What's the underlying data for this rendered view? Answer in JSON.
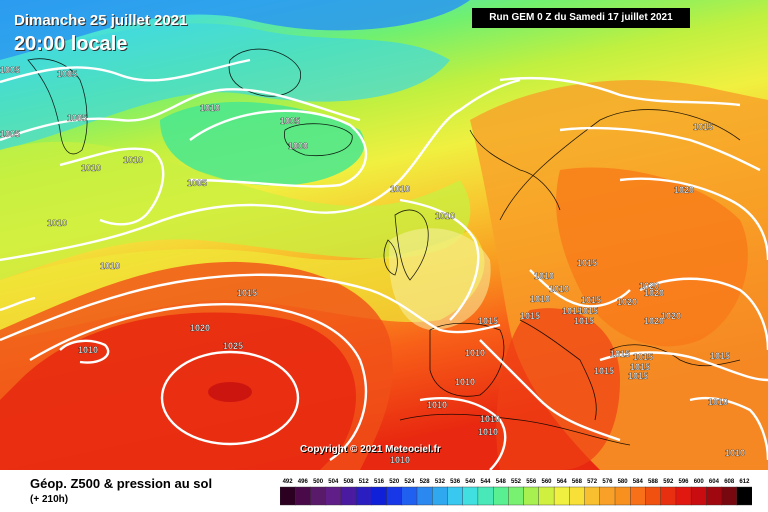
{
  "header": {
    "date": "Dimanche 25 juillet 2021",
    "time": "20:00 locale",
    "run": "Run GEM 0 Z du Samedi 17 juillet 2021"
  },
  "copyright": "Copyright © 2021 Meteociel.fr",
  "footer": {
    "title": "Géop. Z500 & pression au sol",
    "subtitle": "(+ 210h)"
  },
  "scale": {
    "labels": [
      "492",
      "496",
      "500",
      "504",
      "508",
      "512",
      "516",
      "520",
      "524",
      "528",
      "532",
      "536",
      "540",
      "544",
      "548",
      "552",
      "556",
      "560",
      "564",
      "568",
      "572",
      "576",
      "580",
      "584",
      "588",
      "592",
      "596",
      "600",
      "604",
      "608",
      "612"
    ],
    "colors": [
      "#2b0020",
      "#4a0a4a",
      "#5a1a6a",
      "#601e88",
      "#4a1aa0",
      "#2a1ec0",
      "#1020d8",
      "#1838e8",
      "#2060f0",
      "#2a88f0",
      "#30a8f0",
      "#38c8f0",
      "#40e0e0",
      "#48e8b8",
      "#58f090",
      "#78f070",
      "#a8f050",
      "#d0f040",
      "#f0f040",
      "#f8e038",
      "#f8c030",
      "#f8a028",
      "#f89020",
      "#f87018",
      "#f05010",
      "#e83010",
      "#e01810",
      "#c80c10",
      "#a00810",
      "#780810",
      "#000000"
    ]
  },
  "isobars": [
    {
      "label": "1005",
      "x": "10",
      "y": "73"
    },
    {
      "label": "1005",
      "x": "67",
      "y": "77"
    },
    {
      "label": "1005",
      "x": "77",
      "y": "121"
    },
    {
      "label": "1005",
      "x": "10",
      "y": "137"
    },
    {
      "label": "1010",
      "x": "210",
      "y": "111"
    },
    {
      "label": "1005",
      "x": "290",
      "y": "124"
    },
    {
      "label": "1000",
      "x": "298",
      "y": "149"
    },
    {
      "label": "1010",
      "x": "133",
      "y": "163"
    },
    {
      "label": "1010",
      "x": "91",
      "y": "171"
    },
    {
      "label": "1005",
      "x": "197",
      "y": "186"
    },
    {
      "label": "1015",
      "x": "703",
      "y": "130"
    },
    {
      "label": "1020",
      "x": "684",
      "y": "193"
    },
    {
      "label": "1010",
      "x": "400",
      "y": "192"
    },
    {
      "label": "1010",
      "x": "445",
      "y": "219"
    },
    {
      "label": "1010",
      "x": "57",
      "y": "226"
    },
    {
      "label": "1010",
      "x": "110",
      "y": "269"
    },
    {
      "label": "1015",
      "x": "587",
      "y": "266"
    },
    {
      "label": "1010",
      "x": "544",
      "y": "279"
    },
    {
      "label": "1015",
      "x": "247",
      "y": "296"
    },
    {
      "label": "1010",
      "x": "559",
      "y": "292"
    },
    {
      "label": "1010",
      "x": "540",
      "y": "302"
    },
    {
      "label": "1020",
      "x": "649",
      "y": "289"
    },
    {
      "label": "1020",
      "x": "654",
      "y": "296"
    },
    {
      "label": "1015",
      "x": "591",
      "y": "303"
    },
    {
      "label": "1020",
      "x": "627",
      "y": "305"
    },
    {
      "label": "1015",
      "x": "530",
      "y": "319"
    },
    {
      "label": "1015",
      "x": "572",
      "y": "314"
    },
    {
      "label": "1015",
      "x": "588",
      "y": "314"
    },
    {
      "label": "1015",
      "x": "584",
      "y": "324"
    },
    {
      "label": "1020",
      "x": "671",
      "y": "319"
    },
    {
      "label": "1020",
      "x": "654",
      "y": "324"
    },
    {
      "label": "1015",
      "x": "488",
      "y": "324"
    },
    {
      "label": "1020",
      "x": "200",
      "y": "331"
    },
    {
      "label": "1010",
      "x": "88",
      "y": "353"
    },
    {
      "label": "1025",
      "x": "233",
      "y": "349"
    },
    {
      "label": "1010",
      "x": "475",
      "y": "356"
    },
    {
      "label": "1015",
      "x": "620",
      "y": "357"
    },
    {
      "label": "1015",
      "x": "643",
      "y": "360"
    },
    {
      "label": "1015",
      "x": "720",
      "y": "359"
    },
    {
      "label": "1015",
      "x": "640",
      "y": "370"
    },
    {
      "label": "1015",
      "x": "604",
      "y": "374"
    },
    {
      "label": "1015",
      "x": "638",
      "y": "379"
    },
    {
      "label": "1010",
      "x": "465",
      "y": "385"
    },
    {
      "label": "1010",
      "x": "437",
      "y": "408"
    },
    {
      "label": "1010",
      "x": "718",
      "y": "405"
    },
    {
      "label": "1010",
      "x": "490",
      "y": "422"
    },
    {
      "label": "1010",
      "x": "488",
      "y": "435"
    },
    {
      "label": "1010",
      "x": "400",
      "y": "463"
    },
    {
      "label": "1010",
      "x": "735",
      "y": "456"
    }
  ]
}
